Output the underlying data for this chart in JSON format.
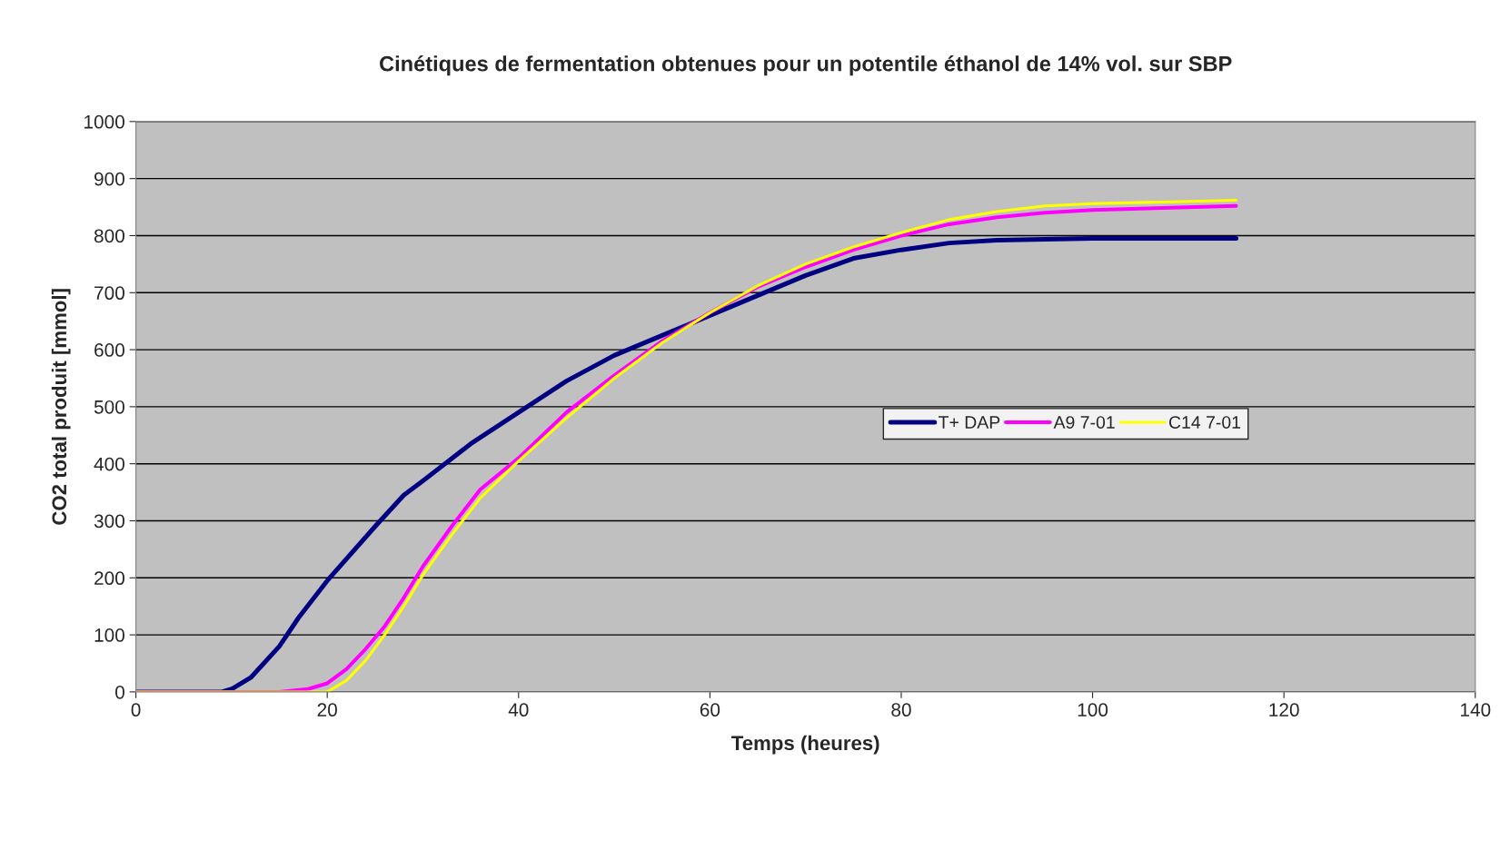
{
  "chart_data": {
    "type": "line",
    "title": "Cinétiques de fermentation obtenues pour un potentile éthanol de 14% vol. sur SBP",
    "xlabel": "Temps (heures)",
    "ylabel": "CO2 total produit [mmol]",
    "xlim": [
      0,
      140
    ],
    "xticks": [
      0,
      20,
      40,
      60,
      80,
      100,
      120,
      140
    ],
    "ylim": [
      0,
      1000
    ],
    "yticks": [
      0,
      100,
      200,
      300,
      400,
      500,
      600,
      700,
      800,
      900,
      1000
    ],
    "grid": "y",
    "legend": "center right",
    "marker": "none",
    "line_style": "solid",
    "series": [
      {
        "name": "T+ DAP",
        "color": "#000080",
        "x": [
          0,
          9,
          10,
          12,
          15,
          17,
          20,
          25,
          28,
          30,
          35,
          40,
          45,
          50,
          55,
          60,
          65,
          70,
          75,
          80,
          85,
          90,
          100,
          115
        ],
        "values": [
          0,
          0,
          5,
          25,
          80,
          130,
          195,
          290,
          345,
          370,
          435,
          490,
          545,
          590,
          625,
          660,
          695,
          730,
          760,
          775,
          787,
          792,
          795,
          795
        ]
      },
      {
        "name": "A9 7-01",
        "color": "#ff00ff",
        "x": [
          0,
          15,
          18,
          20,
          22,
          24,
          26,
          28,
          30,
          33,
          36,
          40,
          45,
          50,
          55,
          60,
          65,
          70,
          75,
          80,
          85,
          90,
          95,
          100,
          115
        ],
        "values": [
          0,
          0,
          5,
          15,
          40,
          75,
          115,
          165,
          220,
          290,
          355,
          410,
          490,
          555,
          615,
          665,
          710,
          745,
          775,
          800,
          820,
          832,
          840,
          845,
          852
        ]
      },
      {
        "name": "C14 7-01",
        "color": "#ffff00",
        "x": [
          0,
          20,
          22,
          24,
          26,
          28,
          30,
          33,
          36,
          40,
          45,
          50,
          55,
          60,
          65,
          70,
          75,
          80,
          85,
          90,
          95,
          100,
          115
        ],
        "values": [
          0,
          0,
          20,
          55,
          100,
          150,
          205,
          275,
          340,
          405,
          480,
          550,
          612,
          665,
          712,
          750,
          780,
          805,
          828,
          842,
          852,
          856,
          862
        ]
      }
    ]
  }
}
